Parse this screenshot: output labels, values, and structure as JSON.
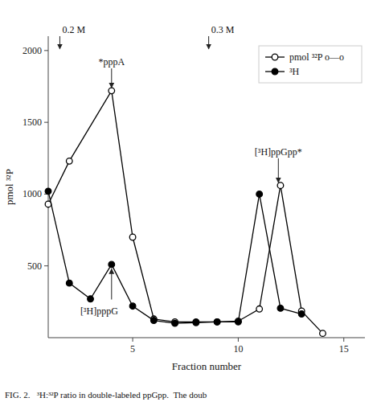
{
  "chart_data": {
    "type": "line",
    "xlabel": "Fraction number",
    "ylabel": "pmol ³²P",
    "caption": "FIG. 2.   ³H:³²P ratio in double-labeled ppGpp.  The doub",
    "xlim": [
      1,
      16
    ],
    "ylim": [
      0,
      2100
    ],
    "xticks": [
      5,
      10,
      15
    ],
    "yticks": [
      500,
      1000,
      1500,
      2000
    ],
    "grid": false,
    "legend": "upper right",
    "series": [
      {
        "name": "pmol ³²P o—o",
        "color": "#000000",
        "marker": "open-circle",
        "x": [
          1,
          2,
          4,
          5,
          6,
          7,
          8,
          9,
          10,
          11,
          12,
          13,
          14
        ],
        "values": [
          930,
          1230,
          1720,
          700,
          130,
          110,
          110,
          110,
          115,
          200,
          1060,
          185,
          30
        ]
      },
      {
        "name": "³H",
        "color": "#000000",
        "marker": "filled-circle",
        "x": [
          1,
          2,
          3,
          4,
          5,
          6,
          7,
          8,
          9,
          10,
          11,
          12,
          13
        ],
        "values": [
          1020,
          380,
          270,
          510,
          220,
          120,
          100,
          105,
          110,
          110,
          1000,
          205,
          165
        ]
      }
    ],
    "annotations": [
      {
        "text": "0.2 M",
        "x": 1.55,
        "y": 2000
      },
      {
        "text": "0.3 M",
        "x": 8.6,
        "y": 2000
      },
      {
        "text": "*pppA",
        "x": 4.0,
        "y": 1730
      },
      {
        "text": "[³H]pppG",
        "x": 4.0,
        "y": 490
      },
      {
        "text": "[³H]ppGpp*",
        "x": 11.9,
        "y": 1070
      }
    ]
  }
}
